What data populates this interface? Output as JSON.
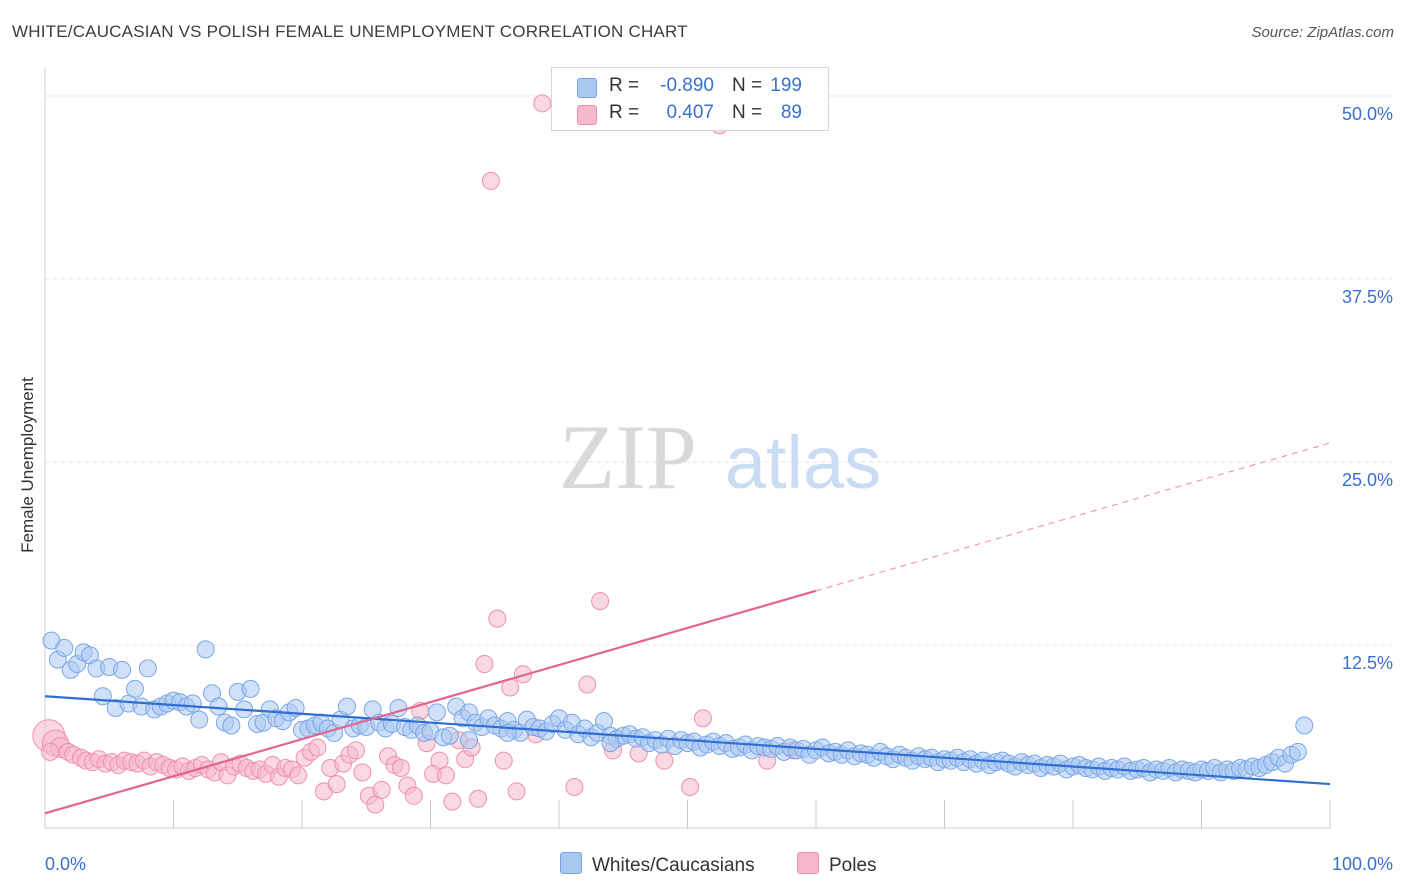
{
  "title": "WHITE/CAUCASIAN VS POLISH FEMALE UNEMPLOYMENT CORRELATION CHART",
  "source": "Source: ZipAtlas.com",
  "watermark": {
    "zip": "ZIP",
    "atlas": "atlas"
  },
  "legend": {
    "rows": [
      {
        "r_label": "R =",
        "r_value": "-0.890",
        "n_label": "N =",
        "n_value": "199",
        "color": "#a9c8f0"
      },
      {
        "r_label": "R =",
        "r_value": "0.407",
        "n_label": "N =",
        "n_value": "89",
        "color": "#f6b8cb"
      }
    ]
  },
  "chart_data": {
    "type": "scatter",
    "title": "WHITE/CAUCASIAN VS POLISH FEMALE UNEMPLOYMENT CORRELATION CHART",
    "xlabel": "",
    "ylabel": "Female Unemployment",
    "xlim": [
      0,
      100
    ],
    "ylim": [
      0,
      50
    ],
    "x_tick_labels": [
      "0.0%",
      "100.0%"
    ],
    "y_ticks": [
      12.5,
      25.0,
      37.5,
      50.0
    ],
    "y_tick_labels": [
      "12.5%",
      "25.0%",
      "37.5%",
      "50.0%"
    ],
    "grid": true,
    "legend_position": "top-center",
    "series": [
      {
        "name": "Whites/Caucasians",
        "color": "#7aa6e8",
        "fill": "#a9c8f0",
        "trend": {
          "x": [
            0,
            100
          ],
          "y": [
            9.0,
            3.0
          ]
        },
        "points": [
          [
            0.5,
            12.8
          ],
          [
            1,
            11.5
          ],
          [
            1.5,
            12.3
          ],
          [
            2,
            10.8
          ],
          [
            2.5,
            11.2
          ],
          [
            3,
            12.0
          ],
          [
            3.5,
            11.8
          ],
          [
            4,
            10.9
          ],
          [
            4.5,
            9.0
          ],
          [
            5,
            11.0
          ],
          [
            5.5,
            8.2
          ],
          [
            6,
            10.8
          ],
          [
            6.5,
            8.5
          ],
          [
            7,
            9.5
          ],
          [
            7.5,
            8.3
          ],
          [
            8,
            10.9
          ],
          [
            8.5,
            8.1
          ],
          [
            9,
            8.3
          ],
          [
            9.5,
            8.5
          ],
          [
            10,
            8.7
          ],
          [
            10.5,
            8.6
          ],
          [
            11,
            8.3
          ],
          [
            11.5,
            8.5
          ],
          [
            12,
            7.4
          ],
          [
            12.5,
            12.2
          ],
          [
            13,
            9.2
          ],
          [
            13.5,
            8.3
          ],
          [
            14,
            7.2
          ],
          [
            14.5,
            7.0
          ],
          [
            15,
            9.3
          ],
          [
            15.5,
            8.1
          ],
          [
            16,
            9.5
          ],
          [
            16.5,
            7.1
          ],
          [
            17,
            7.2
          ],
          [
            17.5,
            8.1
          ],
          [
            18,
            7.5
          ],
          [
            18.5,
            7.3
          ],
          [
            19,
            7.9
          ],
          [
            19.5,
            8.2
          ],
          [
            20,
            6.7
          ],
          [
            20.5,
            6.8
          ],
          [
            21,
            7.0
          ],
          [
            21.5,
            7.2
          ],
          [
            22,
            6.8
          ],
          [
            22.5,
            6.5
          ],
          [
            23,
            7.4
          ],
          [
            23.5,
            8.3
          ],
          [
            24,
            6.8
          ],
          [
            24.5,
            7.0
          ],
          [
            25,
            6.9
          ],
          [
            25.5,
            8.1
          ],
          [
            26,
            7.2
          ],
          [
            26.5,
            6.8
          ],
          [
            27,
            7.1
          ],
          [
            27.5,
            8.2
          ],
          [
            28,
            6.9
          ],
          [
            28.5,
            6.7
          ],
          [
            29,
            7.0
          ],
          [
            29.5,
            6.5
          ],
          [
            30,
            6.6
          ],
          [
            30.5,
            7.9
          ],
          [
            31,
            6.2
          ],
          [
            31.5,
            6.3
          ],
          [
            32,
            8.3
          ],
          [
            32.5,
            7.5
          ],
          [
            33,
            7.9
          ],
          [
            33.5,
            7.2
          ],
          [
            34,
            6.9
          ],
          [
            34.5,
            7.5
          ],
          [
            35,
            7.0
          ],
          [
            35.5,
            6.8
          ],
          [
            36,
            7.3
          ],
          [
            36.5,
            6.7
          ],
          [
            37,
            6.5
          ],
          [
            37.5,
            7.4
          ],
          [
            38,
            6.9
          ],
          [
            38.5,
            6.8
          ],
          [
            39,
            6.6
          ],
          [
            39.5,
            7.1
          ],
          [
            40,
            7.5
          ],
          [
            40.5,
            6.7
          ],
          [
            41,
            7.2
          ],
          [
            41.5,
            6.4
          ],
          [
            42,
            6.8
          ],
          [
            42.5,
            6.2
          ],
          [
            43,
            6.5
          ],
          [
            43.5,
            7.3
          ],
          [
            44,
            6.3
          ],
          [
            44.5,
            6.1
          ],
          [
            45,
            6.3
          ],
          [
            45.5,
            6.4
          ],
          [
            46,
            6.1
          ],
          [
            46.5,
            6.2
          ],
          [
            47,
            5.8
          ],
          [
            47.5,
            6.0
          ],
          [
            48,
            5.7
          ],
          [
            48.5,
            6.1
          ],
          [
            49,
            5.6
          ],
          [
            49.5,
            6.0
          ],
          [
            50,
            5.8
          ],
          [
            50.5,
            5.9
          ],
          [
            51,
            5.5
          ],
          [
            51.5,
            5.7
          ],
          [
            52,
            5.9
          ],
          [
            52.5,
            5.6
          ],
          [
            53,
            5.8
          ],
          [
            53.5,
            5.4
          ],
          [
            54,
            5.5
          ],
          [
            54.5,
            5.7
          ],
          [
            55,
            5.3
          ],
          [
            55.5,
            5.6
          ],
          [
            56,
            5.5
          ],
          [
            56.5,
            5.4
          ],
          [
            57,
            5.6
          ],
          [
            57.5,
            5.2
          ],
          [
            58,
            5.5
          ],
          [
            58.5,
            5.3
          ],
          [
            59,
            5.4
          ],
          [
            59.5,
            5.0
          ],
          [
            60,
            5.3
          ],
          [
            60.5,
            5.5
          ],
          [
            61,
            5.1
          ],
          [
            61.5,
            5.2
          ],
          [
            62,
            5.0
          ],
          [
            62.5,
            5.3
          ],
          [
            63,
            4.9
          ],
          [
            63.5,
            5.1
          ],
          [
            64,
            5.0
          ],
          [
            64.5,
            4.8
          ],
          [
            65,
            5.2
          ],
          [
            65.5,
            4.9
          ],
          [
            66,
            4.7
          ],
          [
            66.5,
            5.0
          ],
          [
            67,
            4.8
          ],
          [
            67.5,
            4.6
          ],
          [
            68,
            4.9
          ],
          [
            68.5,
            4.7
          ],
          [
            69,
            4.8
          ],
          [
            69.5,
            4.5
          ],
          [
            70,
            4.7
          ],
          [
            70.5,
            4.6
          ],
          [
            71,
            4.8
          ],
          [
            71.5,
            4.5
          ],
          [
            72,
            4.7
          ],
          [
            72.5,
            4.4
          ],
          [
            73,
            4.6
          ],
          [
            73.5,
            4.3
          ],
          [
            74,
            4.5
          ],
          [
            74.5,
            4.6
          ],
          [
            75,
            4.4
          ],
          [
            75.5,
            4.2
          ],
          [
            76,
            4.5
          ],
          [
            76.5,
            4.3
          ],
          [
            77,
            4.4
          ],
          [
            77.5,
            4.1
          ],
          [
            78,
            4.3
          ],
          [
            78.5,
            4.2
          ],
          [
            79,
            4.4
          ],
          [
            79.5,
            4.0
          ],
          [
            80,
            4.2
          ],
          [
            80.5,
            4.3
          ],
          [
            81,
            4.1
          ],
          [
            81.5,
            4.0
          ],
          [
            82,
            4.2
          ],
          [
            82.5,
            3.9
          ],
          [
            83,
            4.1
          ],
          [
            83.5,
            4.0
          ],
          [
            84,
            4.2
          ],
          [
            84.5,
            3.9
          ],
          [
            85,
            4.0
          ],
          [
            85.5,
            4.1
          ],
          [
            86,
            3.8
          ],
          [
            86.5,
            4.0
          ],
          [
            87,
            3.9
          ],
          [
            87.5,
            4.1
          ],
          [
            88,
            3.8
          ],
          [
            88.5,
            4.0
          ],
          [
            89,
            3.9
          ],
          [
            89.5,
            3.8
          ],
          [
            90,
            4.0
          ],
          [
            90.5,
            3.9
          ],
          [
            91,
            4.1
          ],
          [
            91.5,
            3.8
          ],
          [
            92,
            4.0
          ],
          [
            92.5,
            3.9
          ],
          [
            93,
            4.1
          ],
          [
            93.5,
            4.0
          ],
          [
            94,
            4.2
          ],
          [
            94.5,
            4.1
          ],
          [
            95,
            4.3
          ],
          [
            95.5,
            4.5
          ],
          [
            96,
            4.8
          ],
          [
            96.5,
            4.4
          ],
          [
            97,
            5.0
          ],
          [
            97.5,
            5.2
          ],
          [
            98,
            7.0
          ],
          [
            33,
            6.0
          ],
          [
            36,
            6.5
          ],
          [
            44,
            5.8
          ]
        ]
      },
      {
        "name": "Poles",
        "color": "#ee8fae",
        "fill": "#f6b8cb",
        "trend": {
          "x": [
            0,
            60
          ],
          "y": [
            1.0,
            16.2
          ]
        },
        "trend_extended": {
          "x": [
            60,
            100
          ],
          "y": [
            16.2,
            26.3
          ]
        },
        "points": [
          [
            0.3,
            6.3
          ],
          [
            0.8,
            5.8
          ],
          [
            1.2,
            5.5
          ],
          [
            1.8,
            5.2
          ],
          [
            2.2,
            5.0
          ],
          [
            2.8,
            4.8
          ],
          [
            3.2,
            4.6
          ],
          [
            3.7,
            4.5
          ],
          [
            4.2,
            4.7
          ],
          [
            4.7,
            4.4
          ],
          [
            5.2,
            4.5
          ],
          [
            5.7,
            4.3
          ],
          [
            6.2,
            4.6
          ],
          [
            6.7,
            4.5
          ],
          [
            7.2,
            4.4
          ],
          [
            7.7,
            4.6
          ],
          [
            8.2,
            4.2
          ],
          [
            8.7,
            4.5
          ],
          [
            9.2,
            4.3
          ],
          [
            9.7,
            4.1
          ],
          [
            10.2,
            4.0
          ],
          [
            10.7,
            4.2
          ],
          [
            11.2,
            3.9
          ],
          [
            11.7,
            4.1
          ],
          [
            12.2,
            4.3
          ],
          [
            12.7,
            4.0
          ],
          [
            13.2,
            3.8
          ],
          [
            13.7,
            4.5
          ],
          [
            14.2,
            3.6
          ],
          [
            14.7,
            4.2
          ],
          [
            15.2,
            4.4
          ],
          [
            15.7,
            4.1
          ],
          [
            16.2,
            3.9
          ],
          [
            16.7,
            4.0
          ],
          [
            17.2,
            3.7
          ],
          [
            17.7,
            4.3
          ],
          [
            18.2,
            3.5
          ],
          [
            18.7,
            4.1
          ],
          [
            19.2,
            4.0
          ],
          [
            19.7,
            3.6
          ],
          [
            20.2,
            4.8
          ],
          [
            20.7,
            5.2
          ],
          [
            21.2,
            5.5
          ],
          [
            21.7,
            2.5
          ],
          [
            22.2,
            4.1
          ],
          [
            22.7,
            3.0
          ],
          [
            23.2,
            4.4
          ],
          [
            23.7,
            5.0
          ],
          [
            24.2,
            5.3
          ],
          [
            24.7,
            3.8
          ],
          [
            25.2,
            2.2
          ],
          [
            25.7,
            1.6
          ],
          [
            26.2,
            2.6
          ],
          [
            26.7,
            4.9
          ],
          [
            27.2,
            4.3
          ],
          [
            27.7,
            4.1
          ],
          [
            28.2,
            2.9
          ],
          [
            28.7,
            2.2
          ],
          [
            29.2,
            8.0
          ],
          [
            29.7,
            5.8
          ],
          [
            30.2,
            3.7
          ],
          [
            30.7,
            4.6
          ],
          [
            31.2,
            3.6
          ],
          [
            31.7,
            1.8
          ],
          [
            32.2,
            6.0
          ],
          [
            32.7,
            4.7
          ],
          [
            33.2,
            5.5
          ],
          [
            33.7,
            2.0
          ],
          [
            34.2,
            11.2
          ],
          [
            34.7,
            44.2
          ],
          [
            35.2,
            14.3
          ],
          [
            35.7,
            4.6
          ],
          [
            36.2,
            9.6
          ],
          [
            36.7,
            2.5
          ],
          [
            37.2,
            10.5
          ],
          [
            38.2,
            6.4
          ],
          [
            38.7,
            49.5
          ],
          [
            41.2,
            2.8
          ],
          [
            42.2,
            9.8
          ],
          [
            43.2,
            15.5
          ],
          [
            44.2,
            5.3
          ],
          [
            46.2,
            5.1
          ],
          [
            48.2,
            4.6
          ],
          [
            50.2,
            2.8
          ],
          [
            51.2,
            7.5
          ],
          [
            52.5,
            48.0
          ],
          [
            56.2,
            4.6
          ],
          [
            58.2,
            5.3
          ],
          [
            0.4,
            5.2
          ]
        ]
      }
    ]
  },
  "bottom_legend": [
    {
      "label": "Whites/Caucasians",
      "color": "#a9c8f0"
    },
    {
      "label": "Poles",
      "color": "#f6b8cb"
    }
  ]
}
